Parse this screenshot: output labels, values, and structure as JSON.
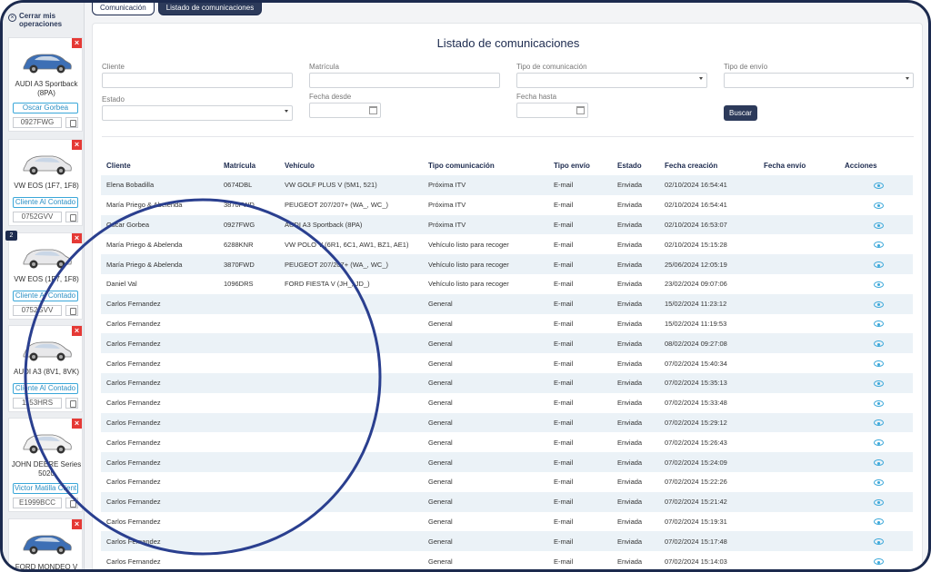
{
  "sidebar": {
    "close_ops": "Cerrar mis operaciones",
    "vehicles": [
      {
        "model": "AUDI A3 Sportback (8PA)",
        "owner": "Oscar Gorbea",
        "plate": "0927FWG",
        "color": "#3d6fb5",
        "badge": ""
      },
      {
        "model": "VW EOS (1F7, 1F8)",
        "owner": "Cliente Al Contado",
        "plate": "0752GVV",
        "color": "#e8e8ea",
        "badge": ""
      },
      {
        "model": "VW EOS (1F7, 1F8)",
        "owner": "Cliente Al Contado",
        "plate": "0752GVV",
        "color": "#e8e8ea",
        "badge": "2"
      },
      {
        "model": "AUDI A3 (8V1, 8VK)",
        "owner": "Cliente Al Contado",
        "plate": "1153HRS",
        "color": "#e8e8ea",
        "badge": ""
      },
      {
        "model": "JOHN DEERE Series 5020",
        "owner": "Victor Matilla Client",
        "plate": "E1999BCC",
        "color": "#f0f0f0",
        "badge": ""
      },
      {
        "model": "FORD MONDEO V",
        "owner": "",
        "plate": "",
        "color": "#3d6fb5",
        "badge": ""
      }
    ]
  },
  "tabs": [
    "Comunicación",
    "Listado de comunicaciones"
  ],
  "page_title": "Listado de comunicaciones",
  "filters": {
    "cliente": "Cliente",
    "matricula": "Matrícula",
    "tipo_comunicacion": "Tipo de comunicación",
    "tipo_envio": "Tipo de envío",
    "estado": "Estado",
    "fecha_desde": "Fecha desde",
    "fecha_hasta": "Fecha hasta",
    "buscar": "Buscar"
  },
  "table": {
    "headers": [
      "Cliente",
      "Matrícula",
      "Vehículo",
      "Tipo comunicación",
      "Tipo envío",
      "Estado",
      "Fecha creación",
      "Fecha envío",
      "Acciones"
    ],
    "rows": [
      [
        "Elena Bobadilla",
        "0674DBL",
        "VW GOLF PLUS V (5M1, 521)",
        "Próxima ITV",
        "E-mail",
        "Enviada",
        "02/10/2024 16:54:41",
        ""
      ],
      [
        "María Priego & Abelenda",
        "3870FWD",
        "PEUGEOT 207/207+ (WA_, WC_)",
        "Próxima ITV",
        "E-mail",
        "Enviada",
        "02/10/2024 16:54:41",
        ""
      ],
      [
        "Oscar Gorbea",
        "0927FWG",
        "AUDI A3 Sportback (8PA)",
        "Próxima ITV",
        "E-mail",
        "Enviada",
        "02/10/2024 16:53:07",
        ""
      ],
      [
        "María Priego & Abelenda",
        "6288KNR",
        "VW POLO V (6R1, 6C1, AW1, BZ1, AE1)",
        "Vehículo listo para recoger",
        "E-mail",
        "Enviada",
        "02/10/2024 15:15:28",
        ""
      ],
      [
        "María Priego & Abelenda",
        "3870FWD",
        "PEUGEOT 207/207+ (WA_, WC_)",
        "Vehículo listo para recoger",
        "E-mail",
        "Enviada",
        "25/06/2024 12:05:19",
        ""
      ],
      [
        "Daniel Val",
        "1096DRS",
        "FORD FIESTA V (JH_, JD_)",
        "Vehículo listo para recoger",
        "E-mail",
        "Enviada",
        "23/02/2024 09:07:06",
        ""
      ],
      [
        "Carlos Fernandez",
        "",
        "",
        "General",
        "E-mail",
        "Enviada",
        "15/02/2024 11:23:12",
        ""
      ],
      [
        "Carlos Fernandez",
        "",
        "",
        "General",
        "E-mail",
        "Enviada",
        "15/02/2024 11:19:53",
        ""
      ],
      [
        "Carlos Fernandez",
        "",
        "",
        "General",
        "E-mail",
        "Enviada",
        "08/02/2024 09:27:08",
        ""
      ],
      [
        "Carlos Fernandez",
        "",
        "",
        "General",
        "E-mail",
        "Enviada",
        "07/02/2024 15:40:34",
        ""
      ],
      [
        "Carlos Fernandez",
        "",
        "",
        "General",
        "E-mail",
        "Enviada",
        "07/02/2024 15:35:13",
        ""
      ],
      [
        "Carlos Fernandez",
        "",
        "",
        "General",
        "E-mail",
        "Enviada",
        "07/02/2024 15:33:48",
        ""
      ],
      [
        "Carlos Fernandez",
        "",
        "",
        "General",
        "E-mail",
        "Enviada",
        "07/02/2024 15:29:12",
        ""
      ],
      [
        "Carlos Fernandez",
        "",
        "",
        "General",
        "E-mail",
        "Enviada",
        "07/02/2024 15:26:43",
        ""
      ],
      [
        "Carlos Fernandez",
        "",
        "",
        "General",
        "E-mail",
        "Enviada",
        "07/02/2024 15:24:09",
        ""
      ],
      [
        "Carlos Fernandez",
        "",
        "",
        "General",
        "E-mail",
        "Enviada",
        "07/02/2024 15:22:26",
        ""
      ],
      [
        "Carlos Fernandez",
        "",
        "",
        "General",
        "E-mail",
        "Enviada",
        "07/02/2024 15:21:42",
        ""
      ],
      [
        "Carlos Fernandez",
        "",
        "",
        "General",
        "E-mail",
        "Enviada",
        "07/02/2024 15:19:31",
        ""
      ],
      [
        "Carlos Fernandez",
        "",
        "",
        "General",
        "E-mail",
        "Enviada",
        "07/02/2024 15:17:48",
        ""
      ],
      [
        "Carlos Fernandez",
        "",
        "",
        "General",
        "E-mail",
        "Enviada",
        "07/02/2024 15:14:03",
        ""
      ]
    ]
  },
  "colors": {
    "primary": "#2c3a5a",
    "accent": "#3aa7d9",
    "danger": "#e53935",
    "row_alt": "#ebf2f7",
    "annotation_circle": "#2a3f8f"
  }
}
